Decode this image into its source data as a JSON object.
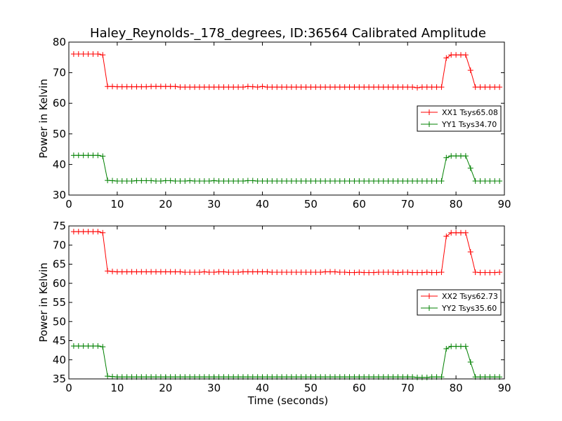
{
  "chart_data": [
    {
      "type": "line",
      "title": "Haley_Reynolds-_178_degrees, ID:36564 Calibrated Amplitude",
      "xlabel": "",
      "ylabel": "Power in Kelvin",
      "xlim": [
        0,
        90
      ],
      "ylim": [
        30,
        80
      ],
      "xticks": [
        0,
        10,
        20,
        30,
        40,
        50,
        60,
        70,
        80,
        90
      ],
      "yticks": [
        30,
        40,
        50,
        60,
        70,
        80
      ],
      "grid": false,
      "legend": "center-right",
      "series": [
        {
          "name": "XX1 Tsys65.08",
          "color": "#ff0000",
          "marker": "plus",
          "x": [
            1,
            2,
            3,
            4,
            5,
            6,
            7,
            8,
            9,
            10,
            11,
            12,
            13,
            14,
            15,
            16,
            17,
            18,
            19,
            20,
            21,
            22,
            23,
            24,
            25,
            26,
            27,
            28,
            29,
            30,
            31,
            32,
            33,
            34,
            35,
            36,
            37,
            38,
            39,
            40,
            41,
            42,
            43,
            44,
            45,
            46,
            47,
            48,
            49,
            50,
            51,
            52,
            53,
            54,
            55,
            56,
            57,
            58,
            59,
            60,
            61,
            62,
            63,
            64,
            65,
            66,
            67,
            68,
            69,
            70,
            71,
            72,
            73,
            74,
            75,
            76,
            77,
            78,
            79,
            80,
            81,
            82,
            83,
            84,
            85,
            86,
            87,
            88,
            89
          ],
          "y": [
            76.1,
            76.1,
            76.1,
            76.1,
            76.1,
            76.1,
            75.8,
            65.5,
            65.5,
            65.4,
            65.4,
            65.4,
            65.4,
            65.4,
            65.4,
            65.4,
            65.5,
            65.5,
            65.5,
            65.5,
            65.5,
            65.5,
            65.3,
            65.3,
            65.3,
            65.3,
            65.3,
            65.3,
            65.3,
            65.3,
            65.3,
            65.3,
            65.3,
            65.3,
            65.3,
            65.3,
            65.5,
            65.4,
            65.3,
            65.5,
            65.3,
            65.3,
            65.3,
            65.3,
            65.3,
            65.3,
            65.3,
            65.3,
            65.3,
            65.3,
            65.3,
            65.3,
            65.3,
            65.3,
            65.3,
            65.3,
            65.3,
            65.3,
            65.3,
            65.3,
            65.3,
            65.3,
            65.3,
            65.3,
            65.3,
            65.3,
            65.3,
            65.3,
            65.3,
            65.3,
            65.3,
            65.1,
            65.3,
            65.3,
            65.3,
            65.3,
            65.3,
            74.8,
            75.8,
            75.8,
            75.8,
            75.8,
            70.8,
            65.3,
            65.3,
            65.3,
            65.3,
            65.3,
            65.3
          ]
        },
        {
          "name": "YY1 Tsys34.70",
          "color": "#008000",
          "marker": "plus",
          "x": [
            1,
            2,
            3,
            4,
            5,
            6,
            7,
            8,
            9,
            10,
            11,
            12,
            13,
            14,
            15,
            16,
            17,
            18,
            19,
            20,
            21,
            22,
            23,
            24,
            25,
            26,
            27,
            28,
            29,
            30,
            31,
            32,
            33,
            34,
            35,
            36,
            37,
            38,
            39,
            40,
            41,
            42,
            43,
            44,
            45,
            46,
            47,
            48,
            49,
            50,
            51,
            52,
            53,
            54,
            55,
            56,
            57,
            58,
            59,
            60,
            61,
            62,
            63,
            64,
            65,
            66,
            67,
            68,
            69,
            70,
            71,
            72,
            73,
            74,
            75,
            76,
            77,
            78,
            79,
            80,
            81,
            82,
            83,
            84,
            85,
            86,
            87,
            88,
            89
          ],
          "y": [
            43.0,
            43.0,
            43.0,
            43.0,
            43.0,
            43.0,
            42.7,
            34.8,
            34.7,
            34.6,
            34.6,
            34.6,
            34.6,
            34.7,
            34.7,
            34.7,
            34.7,
            34.6,
            34.6,
            34.7,
            34.7,
            34.6,
            34.6,
            34.6,
            34.7,
            34.6,
            34.6,
            34.6,
            34.6,
            34.7,
            34.6,
            34.6,
            34.6,
            34.6,
            34.6,
            34.6,
            34.7,
            34.7,
            34.6,
            34.6,
            34.6,
            34.6,
            34.6,
            34.6,
            34.6,
            34.6,
            34.6,
            34.6,
            34.6,
            34.6,
            34.6,
            34.6,
            34.6,
            34.6,
            34.6,
            34.6,
            34.6,
            34.6,
            34.6,
            34.6,
            34.6,
            34.6,
            34.6,
            34.6,
            34.6,
            34.6,
            34.6,
            34.6,
            34.6,
            34.6,
            34.6,
            34.6,
            34.6,
            34.6,
            34.6,
            34.6,
            34.6,
            42.2,
            42.8,
            42.8,
            42.8,
            42.8,
            38.8,
            34.6,
            34.6,
            34.6,
            34.6,
            34.6,
            34.6
          ]
        }
      ]
    },
    {
      "type": "line",
      "title": "",
      "xlabel": "Time (seconds)",
      "ylabel": "Power in Kelvin",
      "xlim": [
        0,
        90
      ],
      "ylim": [
        35,
        75
      ],
      "xticks": [
        0,
        10,
        20,
        30,
        40,
        50,
        60,
        70,
        80,
        90
      ],
      "yticks": [
        35,
        40,
        45,
        50,
        55,
        60,
        65,
        70,
        75
      ],
      "grid": false,
      "legend": "center-right",
      "series": [
        {
          "name": "XX2 Tsys62.73",
          "color": "#ff0000",
          "marker": "plus",
          "x": [
            1,
            2,
            3,
            4,
            5,
            6,
            7,
            8,
            9,
            10,
            11,
            12,
            13,
            14,
            15,
            16,
            17,
            18,
            19,
            20,
            21,
            22,
            23,
            24,
            25,
            26,
            27,
            28,
            29,
            30,
            31,
            32,
            33,
            34,
            35,
            36,
            37,
            38,
            39,
            40,
            41,
            42,
            43,
            44,
            45,
            46,
            47,
            48,
            49,
            50,
            51,
            52,
            53,
            54,
            55,
            56,
            57,
            58,
            59,
            60,
            61,
            62,
            63,
            64,
            65,
            66,
            67,
            68,
            69,
            70,
            71,
            72,
            73,
            74,
            75,
            76,
            77,
            78,
            79,
            80,
            81,
            82,
            83,
            84,
            85,
            86,
            87,
            88,
            89
          ],
          "y": [
            73.5,
            73.5,
            73.5,
            73.5,
            73.5,
            73.5,
            73.2,
            63.2,
            63.1,
            63.0,
            63.0,
            63.0,
            63.0,
            63.0,
            63.0,
            63.0,
            63.0,
            63.0,
            63.0,
            63.0,
            63.0,
            63.0,
            63.0,
            62.9,
            62.9,
            62.9,
            62.9,
            63.0,
            62.9,
            62.9,
            63.0,
            63.0,
            62.9,
            62.9,
            62.9,
            63.0,
            63.0,
            63.0,
            63.0,
            63.0,
            63.0,
            62.9,
            62.9,
            62.9,
            62.9,
            62.9,
            62.9,
            62.9,
            62.9,
            62.9,
            62.9,
            62.9,
            63.0,
            63.0,
            63.0,
            62.9,
            62.9,
            62.8,
            62.8,
            62.9,
            62.8,
            62.8,
            62.8,
            62.9,
            62.9,
            62.9,
            62.9,
            62.8,
            62.9,
            62.9,
            62.8,
            62.8,
            62.8,
            62.9,
            62.8,
            62.8,
            62.9,
            72.3,
            73.2,
            73.2,
            73.2,
            73.2,
            68.2,
            62.9,
            62.8,
            62.8,
            62.8,
            62.8,
            62.9
          ]
        },
        {
          "name": "YY2 Tsys35.60",
          "color": "#008000",
          "marker": "plus",
          "x": [
            1,
            2,
            3,
            4,
            5,
            6,
            7,
            8,
            9,
            10,
            11,
            12,
            13,
            14,
            15,
            16,
            17,
            18,
            19,
            20,
            21,
            22,
            23,
            24,
            25,
            26,
            27,
            28,
            29,
            30,
            31,
            32,
            33,
            34,
            35,
            36,
            37,
            38,
            39,
            40,
            41,
            42,
            43,
            44,
            45,
            46,
            47,
            48,
            49,
            50,
            51,
            52,
            53,
            54,
            55,
            56,
            57,
            58,
            59,
            60,
            61,
            62,
            63,
            64,
            65,
            66,
            67,
            68,
            69,
            70,
            71,
            72,
            73,
            74,
            75,
            76,
            77,
            78,
            79,
            80,
            81,
            82,
            83,
            84,
            85,
            86,
            87,
            88,
            89
          ],
          "y": [
            43.6,
            43.6,
            43.6,
            43.6,
            43.6,
            43.6,
            43.4,
            35.7,
            35.6,
            35.5,
            35.5,
            35.5,
            35.5,
            35.5,
            35.5,
            35.5,
            35.5,
            35.5,
            35.5,
            35.5,
            35.5,
            35.5,
            35.5,
            35.5,
            35.5,
            35.5,
            35.5,
            35.5,
            35.5,
            35.5,
            35.5,
            35.5,
            35.5,
            35.5,
            35.5,
            35.5,
            35.5,
            35.5,
            35.5,
            35.5,
            35.5,
            35.5,
            35.5,
            35.5,
            35.5,
            35.5,
            35.5,
            35.5,
            35.5,
            35.5,
            35.5,
            35.5,
            35.5,
            35.5,
            35.5,
            35.5,
            35.5,
            35.5,
            35.5,
            35.5,
            35.5,
            35.5,
            35.5,
            35.5,
            35.5,
            35.5,
            35.5,
            35.5,
            35.5,
            35.5,
            35.5,
            35.4,
            35.4,
            35.4,
            35.5,
            35.5,
            35.5,
            42.9,
            43.5,
            43.5,
            43.5,
            43.5,
            39.4,
            35.5,
            35.5,
            35.5,
            35.5,
            35.5,
            35.5
          ]
        }
      ]
    }
  ]
}
